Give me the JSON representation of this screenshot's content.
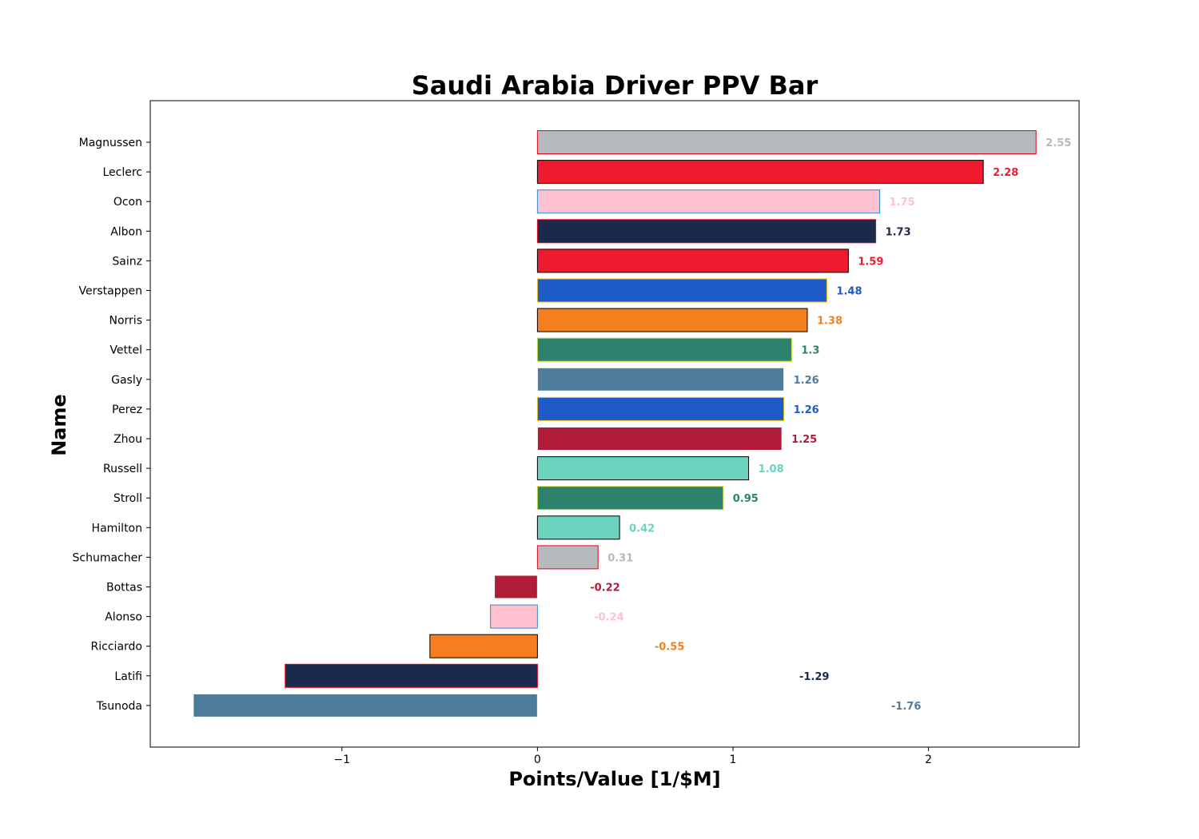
{
  "chart_data": {
    "type": "bar",
    "orientation": "horizontal",
    "title": "Saudi Arabia Driver PPV Bar",
    "xlabel": "Points/Value [1/$M]",
    "ylabel": "Name",
    "xlim": [
      -1.98,
      2.77
    ],
    "xticks": [
      -1,
      0,
      1,
      2
    ],
    "xtick_labels": [
      "−1",
      "0",
      "1",
      "2"
    ],
    "grid": false,
    "legend": "none",
    "categories": [
      "Magnussen",
      "Leclerc",
      "Ocon",
      "Albon",
      "Sainz",
      "Verstappen",
      "Norris",
      "Vettel",
      "Gasly",
      "Perez",
      "Zhou",
      "Russell",
      "Stroll",
      "Hamilton",
      "Schumacher",
      "Bottas",
      "Alonso",
      "Ricciardo",
      "Latifi",
      "Tsunoda"
    ],
    "values": [
      2.55,
      2.28,
      1.75,
      1.73,
      1.59,
      1.48,
      1.38,
      1.3,
      1.26,
      1.26,
      1.25,
      1.08,
      0.95,
      0.42,
      0.31,
      -0.22,
      -0.24,
      -0.55,
      -1.29,
      -1.76
    ],
    "value_labels": [
      "2.55",
      "2.28",
      "1.75",
      "1.73",
      "1.59",
      "1.48",
      "1.38",
      "1.3",
      "1.26",
      "1.26",
      "1.25",
      "1.08",
      "0.95",
      "0.42",
      "0.31",
      "-0.22",
      "-0.24",
      "-0.55",
      "-1.29",
      "-1.76"
    ],
    "fill_colors": [
      "#B6BABD",
      "#EF1A2D",
      "#FFC0CF",
      "#1B2A4C",
      "#EF1A2D",
      "#1E5BC6",
      "#F57F1F",
      "#2D826D",
      "#4E7C9B",
      "#1E5BC6",
      "#B11D38",
      "#6CD3BF",
      "#2D826D",
      "#6CD3BF",
      "#B6BABD",
      "#B11D38",
      "#FFC0CF",
      "#F57F1F",
      "#1B2A4C",
      "#4E7C9B"
    ],
    "edge_colors": [
      "#E3001A",
      "#000000",
      "#2D8BD4",
      "#E3001A",
      "#000000",
      "#F1C40F",
      "#000000",
      "#CDDC39",
      "#FFFFFF",
      "#F1C40F",
      "#FFFFFF",
      "#000000",
      "#CDDC39",
      "#000000",
      "#E3001A",
      "#FFFFFF",
      "#2D8BD4",
      "#000000",
      "#E3001A",
      "#FFFFFF"
    ]
  }
}
